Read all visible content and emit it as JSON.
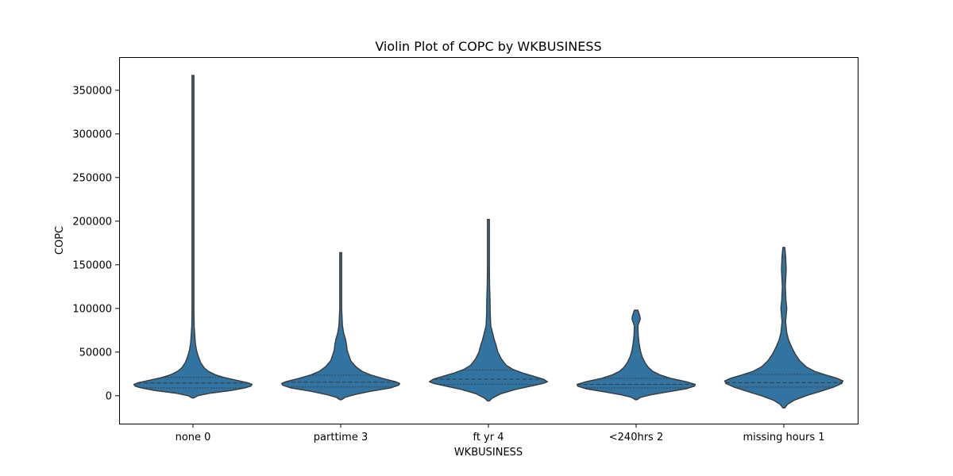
{
  "chart_data": {
    "type": "violin",
    "title": "Violin Plot of COPC by WKBUSINESS",
    "xlabel": "WKBUSINESS",
    "ylabel": "COPC",
    "categories": [
      "none 0",
      "parttime 3",
      "ft yr 4",
      "<240hrs 2",
      "missing hours 1"
    ],
    "ylim": [
      -32000,
      388000
    ],
    "yticks": [
      0,
      50000,
      100000,
      150000,
      200000,
      250000,
      300000,
      350000
    ],
    "grid": false,
    "legend": "none",
    "fill_color": "#3274a1",
    "edge_color": "#3a3a3a",
    "violins": [
      {
        "category": "none 0",
        "quartiles": [
          9000,
          14500,
          21000
        ],
        "profile": [
          [
            -2500,
            0.01
          ],
          [
            0,
            0.08
          ],
          [
            3000,
            0.3
          ],
          [
            6000,
            0.65
          ],
          [
            9000,
            0.88
          ],
          [
            11000,
            0.98
          ],
          [
            13000,
            1.0
          ],
          [
            15000,
            0.92
          ],
          [
            18000,
            0.72
          ],
          [
            21000,
            0.52
          ],
          [
            24000,
            0.38
          ],
          [
            28000,
            0.26
          ],
          [
            32000,
            0.19
          ],
          [
            38000,
            0.13
          ],
          [
            45000,
            0.09
          ],
          [
            52000,
            0.06
          ],
          [
            60000,
            0.04
          ],
          [
            70000,
            0.03
          ],
          [
            80000,
            0.02
          ],
          [
            100000,
            0.013
          ],
          [
            150000,
            0.01
          ],
          [
            250000,
            0.009
          ],
          [
            367000,
            0.006
          ]
        ]
      },
      {
        "category": "parttime 3",
        "quartiles": [
          10000,
          15500,
          23500
        ],
        "profile": [
          [
            -4500,
            0.01
          ],
          [
            -2000,
            0.07
          ],
          [
            1000,
            0.22
          ],
          [
            5000,
            0.5
          ],
          [
            9000,
            0.85
          ],
          [
            12000,
            0.98
          ],
          [
            14000,
            1.0
          ],
          [
            16000,
            0.93
          ],
          [
            20000,
            0.7
          ],
          [
            24000,
            0.5
          ],
          [
            28000,
            0.36
          ],
          [
            33000,
            0.26
          ],
          [
            40000,
            0.17
          ],
          [
            46000,
            0.14
          ],
          [
            52000,
            0.11
          ],
          [
            58000,
            0.1
          ],
          [
            65000,
            0.08
          ],
          [
            72000,
            0.05
          ],
          [
            80000,
            0.03
          ],
          [
            100000,
            0.015
          ],
          [
            130000,
            0.012
          ],
          [
            164000,
            0.008
          ]
        ]
      },
      {
        "category": "ft yr 4",
        "quartiles": [
          13000,
          19000,
          29500
        ],
        "profile": [
          [
            -6000,
            0.01
          ],
          [
            -3000,
            0.06
          ],
          [
            2000,
            0.2
          ],
          [
            7000,
            0.45
          ],
          [
            11000,
            0.72
          ],
          [
            14000,
            0.92
          ],
          [
            16000,
            1.0
          ],
          [
            19000,
            0.93
          ],
          [
            22000,
            0.78
          ],
          [
            26000,
            0.58
          ],
          [
            30000,
            0.42
          ],
          [
            35000,
            0.3
          ],
          [
            42000,
            0.22
          ],
          [
            50000,
            0.16
          ],
          [
            58000,
            0.13
          ],
          [
            64000,
            0.1
          ],
          [
            72000,
            0.07
          ],
          [
            80000,
            0.04
          ],
          [
            95000,
            0.03
          ],
          [
            110000,
            0.028
          ],
          [
            125000,
            0.02
          ],
          [
            150000,
            0.012
          ],
          [
            202000,
            0.007
          ]
        ]
      },
      {
        "category": "<240hrs 2",
        "quartiles": [
          9000,
          13000,
          20000
        ],
        "profile": [
          [
            -4500,
            0.01
          ],
          [
            -2000,
            0.07
          ],
          [
            1000,
            0.25
          ],
          [
            4000,
            0.5
          ],
          [
            8000,
            0.85
          ],
          [
            11000,
            0.99
          ],
          [
            13000,
            1.0
          ],
          [
            16000,
            0.85
          ],
          [
            20000,
            0.58
          ],
          [
            24000,
            0.4
          ],
          [
            28000,
            0.28
          ],
          [
            33000,
            0.2
          ],
          [
            38000,
            0.15
          ],
          [
            45000,
            0.1
          ],
          [
            52000,
            0.07
          ],
          [
            60000,
            0.05
          ],
          [
            70000,
            0.035
          ],
          [
            80000,
            0.03
          ],
          [
            88000,
            0.07
          ],
          [
            92000,
            0.06
          ],
          [
            98000,
            0.03
          ]
        ]
      },
      {
        "category": "missing hours 1",
        "quartiles": [
          10000,
          15000,
          24500
        ],
        "profile": [
          [
            -14000,
            0.01
          ],
          [
            -10000,
            0.06
          ],
          [
            -5000,
            0.18
          ],
          [
            0,
            0.38
          ],
          [
            5000,
            0.62
          ],
          [
            10000,
            0.85
          ],
          [
            14000,
            0.98
          ],
          [
            17000,
            1.0
          ],
          [
            20000,
            0.9
          ],
          [
            24000,
            0.7
          ],
          [
            28000,
            0.52
          ],
          [
            33000,
            0.38
          ],
          [
            40000,
            0.27
          ],
          [
            48000,
            0.19
          ],
          [
            56000,
            0.13
          ],
          [
            64000,
            0.08
          ],
          [
            72000,
            0.05
          ],
          [
            85000,
            0.03
          ],
          [
            100000,
            0.05
          ],
          [
            110000,
            0.035
          ],
          [
            125000,
            0.025
          ],
          [
            145000,
            0.04
          ],
          [
            160000,
            0.03
          ],
          [
            170000,
            0.008
          ]
        ]
      }
    ]
  }
}
